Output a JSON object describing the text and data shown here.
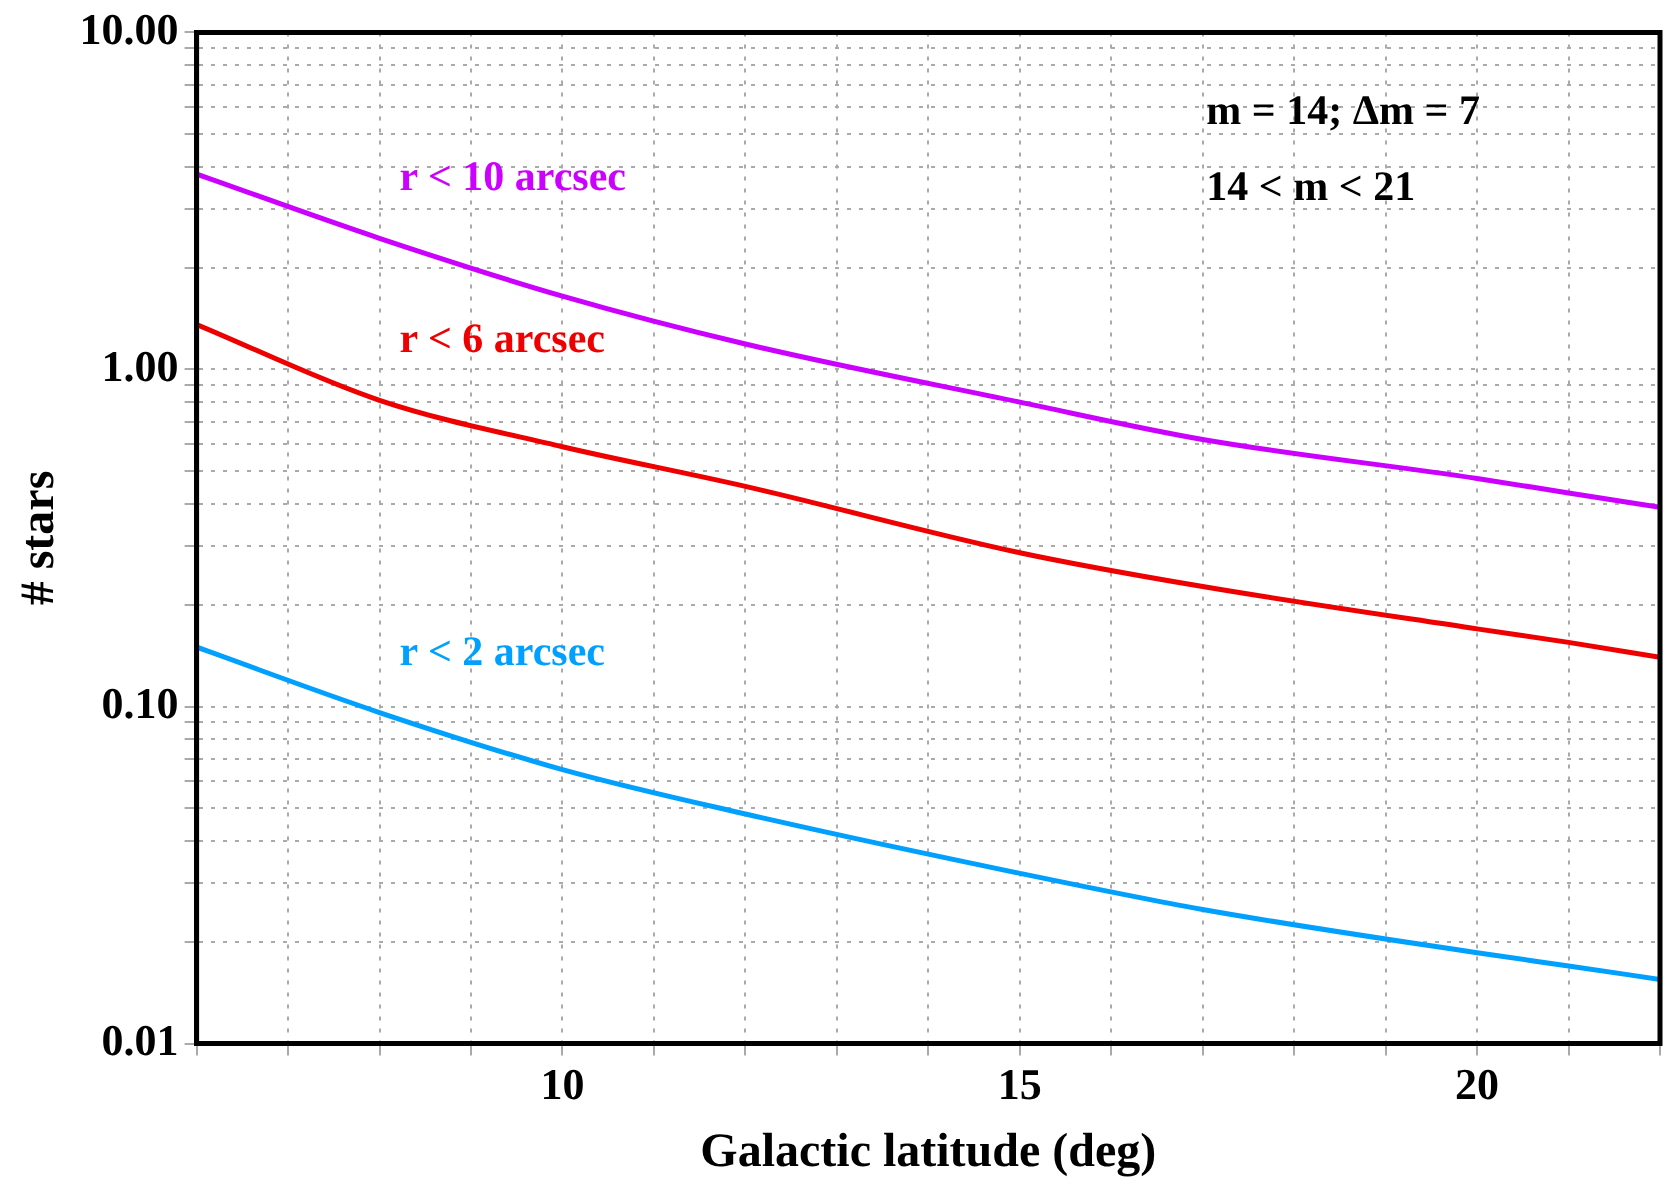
{
  "chart_data": {
    "type": "line",
    "xlabel": "Galactic latitude (deg)",
    "ylabel": "# stars",
    "x": [
      6,
      8,
      10,
      12,
      15,
      17,
      20,
      21,
      22
    ],
    "series": [
      {
        "name": "r < 10 arcsec",
        "color": "#cc00ff",
        "values": [
          3.8,
          2.45,
          1.65,
          1.19,
          0.8,
          0.62,
          0.475,
          0.43,
          0.39
        ]
      },
      {
        "name": "r < 6 arcsec",
        "color": "#ee0000",
        "values": [
          1.36,
          0.81,
          0.59,
          0.45,
          0.286,
          0.227,
          0.17,
          0.155,
          0.14
        ]
      },
      {
        "name": "r < 2 arcsec",
        "color": "#00a0ff",
        "values": [
          0.15,
          0.096,
          0.065,
          0.048,
          0.032,
          0.025,
          0.0186,
          0.017,
          0.0155
        ]
      }
    ],
    "log": "y",
    "xlim": [
      6,
      22
    ],
    "ylim": [
      0.01,
      10
    ],
    "xticks": [
      {
        "value": 6,
        "label": null
      },
      {
        "value": 7,
        "label": null
      },
      {
        "value": 8,
        "label": null
      },
      {
        "value": 9,
        "label": null
      },
      10,
      {
        "value": 11,
        "label": null
      },
      {
        "value": 12,
        "label": null
      },
      {
        "value": 13,
        "label": null
      },
      {
        "value": 14,
        "label": null
      },
      15,
      {
        "value": 16,
        "label": null
      },
      {
        "value": 17,
        "label": null
      },
      {
        "value": 18,
        "label": null
      },
      {
        "value": 19,
        "label": null
      },
      20,
      {
        "value": 21,
        "label": null
      },
      {
        "value": 22,
        "label": null
      }
    ],
    "yticks": [
      {
        "value": 0.01,
        "label": "0.01"
      },
      {
        "value": 0.02,
        "label": null
      },
      {
        "value": 0.03,
        "label": null
      },
      {
        "value": 0.04,
        "label": null
      },
      {
        "value": 0.05,
        "label": null
      },
      {
        "value": 0.06,
        "label": null
      },
      {
        "value": 0.07,
        "label": null
      },
      {
        "value": 0.08,
        "label": null
      },
      {
        "value": 0.09,
        "label": null
      },
      {
        "value": 0.1,
        "label": "0.10"
      },
      {
        "value": 0.2,
        "label": null
      },
      {
        "value": 0.3,
        "label": null
      },
      {
        "value": 0.4,
        "label": null
      },
      {
        "value": 0.5,
        "label": null
      },
      {
        "value": 0.6,
        "label": null
      },
      {
        "value": 0.7,
        "label": null
      },
      {
        "value": 0.8,
        "label": null
      },
      {
        "value": 0.9,
        "label": null
      },
      {
        "value": 1,
        "label": "1.00"
      },
      {
        "value": 2,
        "label": null
      },
      {
        "value": 3,
        "label": null
      },
      {
        "value": 4,
        "label": null
      },
      {
        "value": 5,
        "label": null
      },
      {
        "value": 6,
        "label": null
      },
      {
        "value": 7,
        "label": null
      },
      {
        "value": 8,
        "label": null
      },
      {
        "value": 9,
        "label": null
      },
      {
        "value": 10,
        "label": "10.00"
      }
    ],
    "grid": true,
    "legend": false,
    "marker": "none",
    "line_style": "solid",
    "annotations": [
      "m = 14; Δm = 7",
      "14 < m < 21"
    ]
  }
}
